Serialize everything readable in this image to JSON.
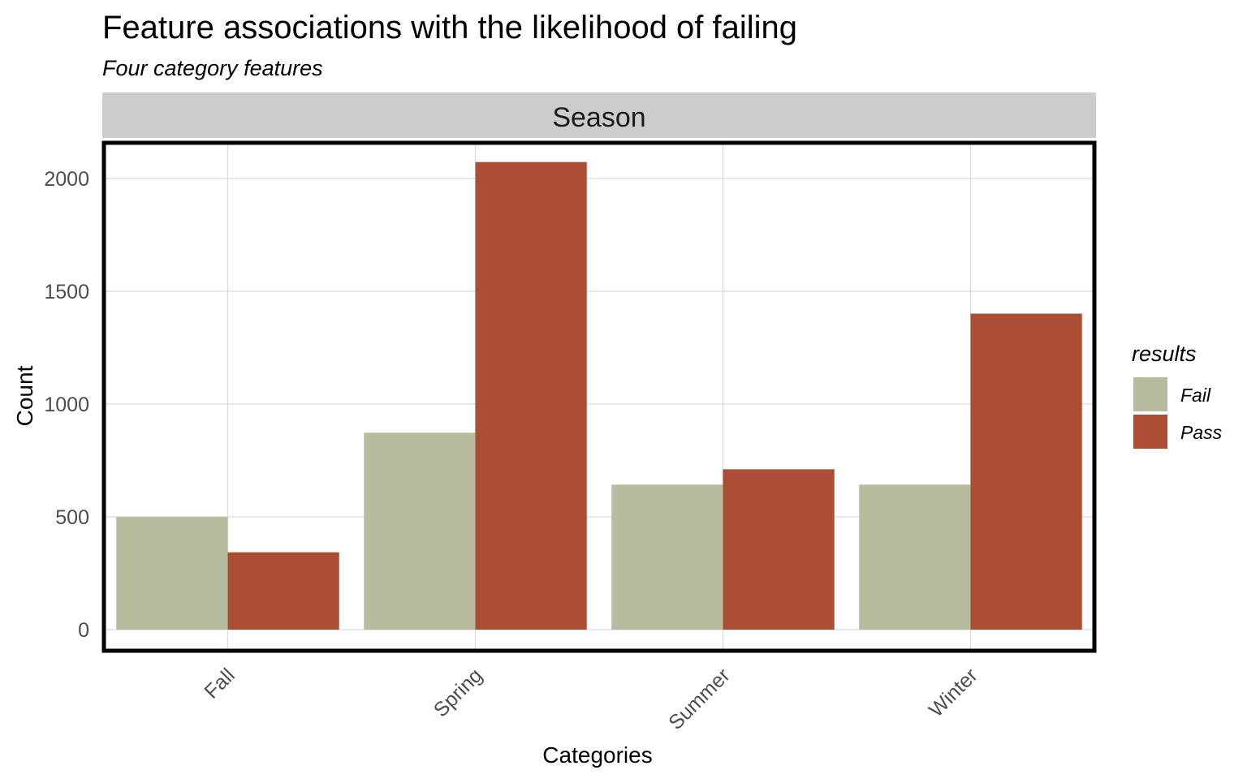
{
  "chart_data": {
    "type": "bar",
    "title": "Feature associations with the likelihood of failing",
    "subtitle": "Four category features",
    "facet_label": "Season",
    "xlabel": "Categories",
    "ylabel": "Count",
    "categories": [
      "Fall",
      "Spring",
      "Summer",
      "Winter"
    ],
    "series": [
      {
        "name": "Fail",
        "color": "#b9bb9f",
        "values": [
          500,
          873,
          643,
          643
        ]
      },
      {
        "name": "Pass",
        "color": "#ab4e33",
        "values": [
          343,
          2073,
          711,
          1401
        ]
      }
    ],
    "yticks": [
      0,
      500,
      1000,
      1500,
      2000
    ],
    "ylim": [
      -90,
      2200
    ],
    "legend": {
      "title": "results",
      "position": "right"
    },
    "grid": true,
    "panel_border": true,
    "facet_strip_color": "#cccccc"
  }
}
